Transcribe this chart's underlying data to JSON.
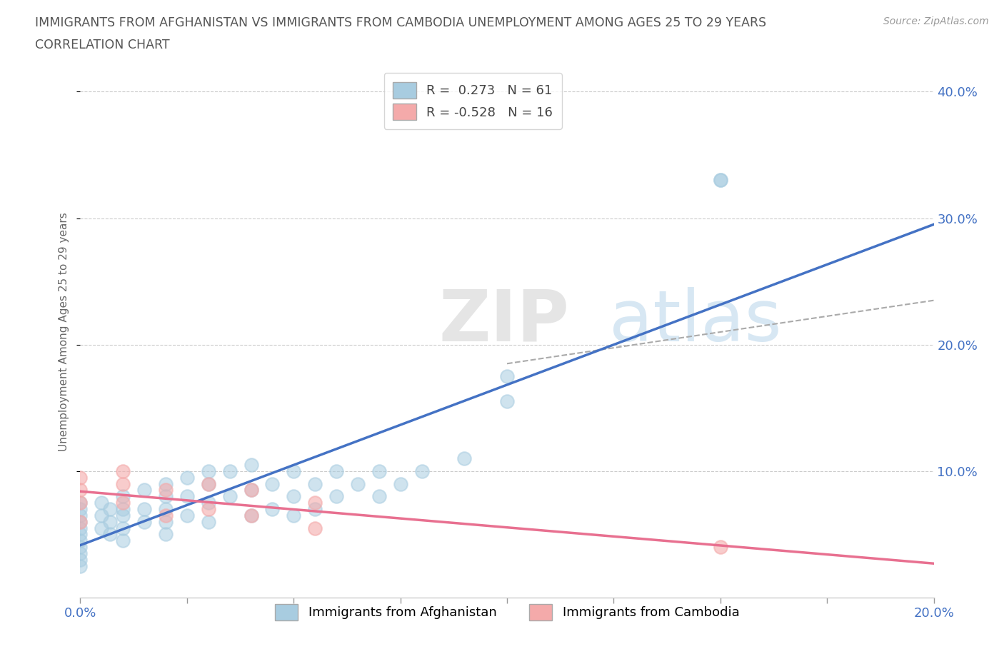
{
  "title_line1": "IMMIGRANTS FROM AFGHANISTAN VS IMMIGRANTS FROM CAMBODIA UNEMPLOYMENT AMONG AGES 25 TO 29 YEARS",
  "title_line2": "CORRELATION CHART",
  "source": "Source: ZipAtlas.com",
  "ylabel": "Unemployment Among Ages 25 to 29 years",
  "xlim": [
    0.0,
    0.2
  ],
  "ylim": [
    0.0,
    0.42
  ],
  "xticks": [
    0.0,
    0.025,
    0.05,
    0.075,
    0.1,
    0.125,
    0.15,
    0.175,
    0.2
  ],
  "xticklabels": [
    "0.0%",
    "",
    "",
    "",
    "",
    "",
    "",
    "",
    "20.0%"
  ],
  "yticks_right": [
    0.1,
    0.2,
    0.3,
    0.4
  ],
  "ytick_labels_right": [
    "10.0%",
    "20.0%",
    "30.0%",
    "40.0%"
  ],
  "afghanistan_color": "#a8cce0",
  "cambodia_color": "#f4aaaa",
  "afghanistan_line_color": "#4472c4",
  "cambodia_line_color": "#e87090",
  "watermark_zip": "ZIP",
  "watermark_atlas": "atlas",
  "afghanistan_x": [
    0.0,
    0.0,
    0.0,
    0.0,
    0.0,
    0.0,
    0.0,
    0.0,
    0.0,
    0.0,
    0.0,
    0.005,
    0.005,
    0.005,
    0.007,
    0.007,
    0.007,
    0.01,
    0.01,
    0.01,
    0.01,
    0.01,
    0.015,
    0.015,
    0.015,
    0.02,
    0.02,
    0.02,
    0.02,
    0.02,
    0.025,
    0.025,
    0.025,
    0.03,
    0.03,
    0.03,
    0.03,
    0.035,
    0.035,
    0.04,
    0.04,
    0.04,
    0.045,
    0.045,
    0.05,
    0.05,
    0.05,
    0.055,
    0.055,
    0.06,
    0.06,
    0.065,
    0.07,
    0.07,
    0.075,
    0.08,
    0.09,
    0.1,
    0.1,
    0.15,
    0.15
  ],
  "afghanistan_y": [
    0.065,
    0.07,
    0.075,
    0.055,
    0.06,
    0.05,
    0.045,
    0.04,
    0.035,
    0.03,
    0.025,
    0.075,
    0.065,
    0.055,
    0.07,
    0.06,
    0.05,
    0.08,
    0.07,
    0.065,
    0.055,
    0.045,
    0.085,
    0.07,
    0.06,
    0.09,
    0.08,
    0.07,
    0.06,
    0.05,
    0.095,
    0.08,
    0.065,
    0.1,
    0.09,
    0.075,
    0.06,
    0.1,
    0.08,
    0.105,
    0.085,
    0.065,
    0.09,
    0.07,
    0.1,
    0.08,
    0.065,
    0.09,
    0.07,
    0.1,
    0.08,
    0.09,
    0.1,
    0.08,
    0.09,
    0.1,
    0.11,
    0.155,
    0.175,
    0.33,
    0.33
  ],
  "cambodia_x": [
    0.0,
    0.0,
    0.0,
    0.0,
    0.01,
    0.01,
    0.01,
    0.02,
    0.02,
    0.03,
    0.03,
    0.04,
    0.04,
    0.055,
    0.055,
    0.15
  ],
  "cambodia_y": [
    0.095,
    0.085,
    0.075,
    0.06,
    0.1,
    0.09,
    0.075,
    0.085,
    0.065,
    0.09,
    0.07,
    0.085,
    0.065,
    0.075,
    0.055,
    0.04
  ],
  "grid_color": "#cccccc",
  "background_color": "#ffffff",
  "title_color": "#555555",
  "axis_label_color": "#666666",
  "tick_label_color": "#4472c4"
}
